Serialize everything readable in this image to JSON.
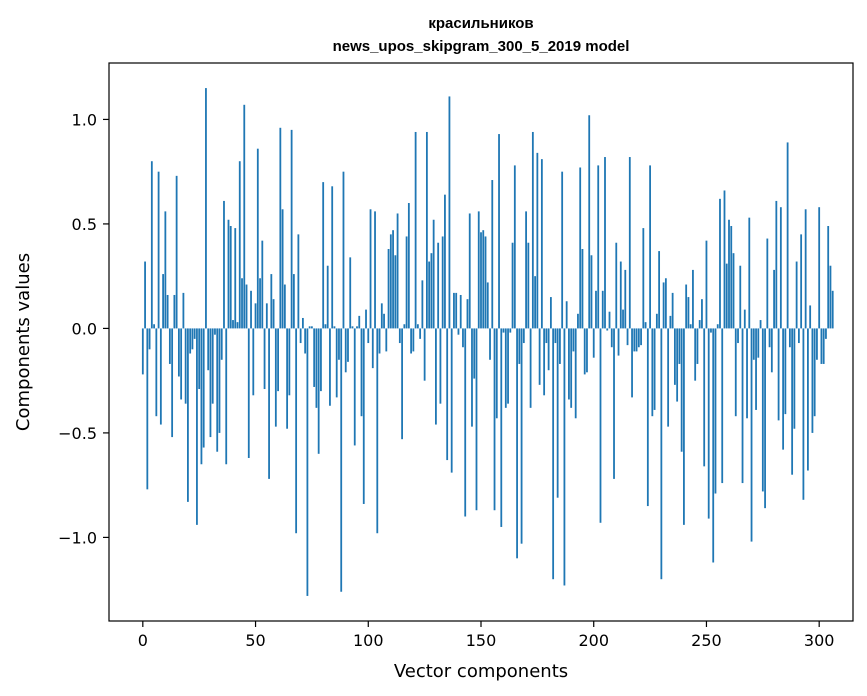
{
  "chart_data": {
    "type": "bar",
    "title": "красильников\nnews_upos_skipgram_300_5_2019 model",
    "title_lines": [
      "красильников",
      "news_upos_skipgram_300_5_2019 model"
    ],
    "xlabel": "Vector components",
    "ylabel": "Components values",
    "xlim": [
      -15,
      315
    ],
    "ylim": [
      -1.4,
      1.27
    ],
    "xticks": [
      0,
      50,
      100,
      150,
      200,
      250,
      300
    ],
    "xtick_labels": [
      "0",
      "50",
      "100",
      "150",
      "200",
      "250",
      "300"
    ],
    "yticks": [
      -1.0,
      -0.5,
      0.0,
      0.5,
      1.0
    ],
    "ytick_labels": [
      "−1.0",
      "−0.5",
      "0.0",
      "0.5",
      "1.0"
    ],
    "grid": false,
    "bar_color": "#1f77b4",
    "values": [
      -0.22,
      0.32,
      -0.77,
      -0.1,
      0.8,
      0.02,
      -0.42,
      0.75,
      -0.46,
      0.26,
      0.56,
      0.16,
      -0.17,
      -0.52,
      0.16,
      0.73,
      -0.23,
      -0.34,
      0.17,
      -0.36,
      -0.83,
      -0.12,
      -0.1,
      -0.05,
      -0.94,
      -0.29,
      -0.65,
      -0.57,
      1.15,
      -0.2,
      -0.52,
      -0.36,
      -0.03,
      -0.59,
      -0.5,
      -0.15,
      0.61,
      -0.65,
      0.52,
      0.49,
      0.04,
      0.48,
      0.03,
      0.8,
      0.24,
      1.07,
      0.21,
      -0.62,
      0.18,
      -0.32,
      0.12,
      0.86,
      0.24,
      0.42,
      -0.29,
      0.12,
      -0.72,
      0.26,
      0.14,
      -0.47,
      -0.3,
      0.96,
      0.57,
      0.21,
      -0.48,
      -0.32,
      0.95,
      0.26,
      -0.98,
      0.45,
      -0.07,
      0.05,
      -0.12,
      -1.28,
      0.01,
      0.01,
      -0.28,
      -0.38,
      -0.6,
      -0.3,
      0.7,
      0.02,
      0.3,
      -0.37,
      0.68,
      0.01,
      -0.33,
      -0.15,
      -1.26,
      0.75,
      -0.21,
      -0.16,
      0.34,
      0.01,
      -0.56,
      0.01,
      0.06,
      -0.42,
      -0.84,
      0.09,
      -0.07,
      0.57,
      -0.19,
      0.56,
      -0.98,
      -0.12,
      0.12,
      0.07,
      -0.11,
      0.38,
      0.45,
      0.47,
      0.35,
      0.55,
      -0.07,
      -0.53,
      0.02,
      0.44,
      0.6,
      -0.12,
      -0.11,
      0.94,
      0.02,
      -0.05,
      0.23,
      -0.25,
      0.94,
      0.32,
      0.36,
      0.52,
      -0.46,
      0.41,
      -0.36,
      0.44,
      0.64,
      -0.63,
      1.11,
      -0.69,
      0.17,
      0.17,
      -0.03,
      0.16,
      -0.09,
      -0.9,
      0.14,
      0.55,
      -0.47,
      -0.24,
      -0.87,
      0.56,
      0.46,
      0.47,
      0.44,
      0.22,
      -0.15,
      0.71,
      -0.87,
      -0.43,
      0.93,
      -0.95,
      -0.02,
      -0.38,
      -0.36,
      -0.02,
      0.41,
      0.78,
      -1.1,
      -0.17,
      -1.03,
      -0.07,
      0.56,
      0.41,
      -0.38,
      0.94,
      0.25,
      0.84,
      -0.27,
      0.81,
      -0.32,
      -0.07,
      -0.2,
      0.15,
      -1.2,
      -0.07,
      -0.81,
      -0.17,
      0.75,
      -1.23,
      0.13,
      -0.34,
      -0.38,
      -0.11,
      -0.43,
      0.07,
      0.77,
      0.38,
      -0.22,
      -0.21,
      1.02,
      0.35,
      -0.14,
      0.18,
      0.78,
      -0.93,
      0.18,
      0.82,
      -0.01,
      0.08,
      -0.09,
      -0.72,
      0.41,
      -0.13,
      0.32,
      0.09,
      0.28,
      -0.08,
      0.82,
      -0.33,
      -0.11,
      -0.11,
      -0.09,
      -0.08,
      0.48,
      0.03,
      -0.85,
      0.78,
      -0.42,
      -0.39,
      0.07,
      0.37,
      -1.2,
      0.22,
      0.24,
      -0.47,
      0.06,
      0.17,
      -0.27,
      -0.35,
      -0.17,
      -0.59,
      -0.94,
      0.21,
      0.15,
      0.02,
      0.28,
      -0.25,
      -0.17,
      0.04,
      0.14,
      -0.66,
      0.42,
      -0.91,
      -0.02,
      -1.12,
      -0.79,
      0.02,
      0.62,
      -0.74,
      0.66,
      0.31,
      0.52,
      0.49,
      0.36,
      -0.42,
      -0.07,
      0.3,
      -0.74,
      0.09,
      -0.43,
      0.53,
      -1.02,
      -0.15,
      -0.39,
      -0.14,
      0.04,
      -0.78,
      -0.86,
      0.43,
      -0.09,
      -0.21,
      0.28,
      0.61,
      -0.44,
      0.58,
      -0.58,
      -0.41,
      0.89,
      -0.09,
      -0.7,
      -0.48,
      0.32,
      -0.07,
      0.45,
      -0.82,
      0.57,
      -0.68,
      0.11,
      -0.5,
      -0.42,
      -0.15,
      0.58,
      -0.17,
      -0.17,
      -0.05,
      0.49,
      0.3,
      0.18
    ]
  }
}
